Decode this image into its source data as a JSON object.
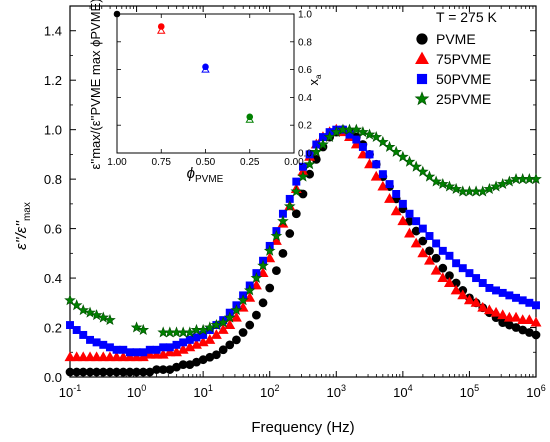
{
  "chart_data": [
    {
      "type": "scatter",
      "title": "",
      "annotation": "T = 275 K",
      "xlabel": "Frequency (Hz)",
      "ylabel_main": "ε''/ε''",
      "ylabel_sub": "max",
      "xscale": "log",
      "xlim": [
        0.1,
        1000000
      ],
      "ylim": [
        0.0,
        1.5
      ],
      "x_tick_labels": [
        {
          "base": "10",
          "exp": "-1"
        },
        {
          "base": "10",
          "exp": "0"
        },
        {
          "base": "10",
          "exp": "1"
        },
        {
          "base": "10",
          "exp": "2"
        },
        {
          "base": "10",
          "exp": "3"
        },
        {
          "base": "10",
          "exp": "4"
        },
        {
          "base": "10",
          "exp": "5"
        },
        {
          "base": "10",
          "exp": "6"
        }
      ],
      "y_tick_labels": [
        "0.0",
        "0.2",
        "0.4",
        "0.6",
        "0.8",
        "1.0",
        "1.2",
        "1.4"
      ],
      "legend_position": "top-right",
      "series": [
        {
          "name": "PVME",
          "marker": "circle",
          "color": "#000000",
          "x": [
            0.1,
            0.126,
            0.158,
            0.2,
            0.251,
            0.316,
            0.398,
            0.501,
            0.631,
            0.794,
            1,
            1.26,
            1.58,
            2,
            2.51,
            3.16,
            3.98,
            5.01,
            6.31,
            7.94,
            10,
            12.6,
            15.8,
            20,
            25.1,
            31.6,
            39.8,
            50.1,
            63.1,
            79.4,
            100,
            126,
            158,
            200,
            251,
            316,
            398,
            501,
            631,
            794,
            1000,
            1260,
            1580,
            2000,
            2510,
            3160,
            3980,
            5010,
            6310,
            7940,
            10000,
            12590,
            15850,
            19950,
            25120,
            31620,
            39810,
            50120,
            63100,
            79430,
            100000,
            125900,
            158500,
            199500,
            251200,
            316200,
            398100,
            501200,
            631000,
            794300,
            1000000
          ],
          "y": [
            0.02,
            0.02,
            0.02,
            0.02,
            0.02,
            0.02,
            0.02,
            0.02,
            0.02,
            0.02,
            0.02,
            0.02,
            0.02,
            0.03,
            0.03,
            0.03,
            0.04,
            0.05,
            0.05,
            0.06,
            0.07,
            0.08,
            0.09,
            0.11,
            0.13,
            0.15,
            0.18,
            0.21,
            0.25,
            0.3,
            0.36,
            0.43,
            0.5,
            0.58,
            0.66,
            0.74,
            0.82,
            0.88,
            0.93,
            0.97,
            0.99,
            1.0,
            0.99,
            0.97,
            0.94,
            0.9,
            0.86,
            0.81,
            0.77,
            0.72,
            0.68,
            0.63,
            0.59,
            0.55,
            0.51,
            0.48,
            0.44,
            0.41,
            0.38,
            0.35,
            0.32,
            0.3,
            0.28,
            0.26,
            0.24,
            0.22,
            0.21,
            0.2,
            0.19,
            0.18,
            0.17
          ]
        },
        {
          "name": "75PVME",
          "marker": "triangle",
          "color": "#ff0000",
          "x": [
            0.1,
            0.126,
            0.158,
            0.2,
            0.251,
            0.316,
            0.398,
            0.501,
            0.631,
            0.794,
            1,
            1.26,
            1.58,
            2,
            2.51,
            3.16,
            3.98,
            5.01,
            6.31,
            7.94,
            10,
            12.6,
            15.8,
            20,
            25.1,
            31.6,
            39.8,
            50.1,
            63.1,
            79.4,
            100,
            126,
            158,
            200,
            251,
            316,
            398,
            501,
            631,
            794,
            1000,
            1260,
            1580,
            2000,
            2510,
            3160,
            3980,
            5010,
            6310,
            7940,
            10000,
            12590,
            15850,
            19950,
            25120,
            31620,
            39810,
            50120,
            63100,
            79430,
            100000,
            125900,
            158500,
            199500,
            251200,
            316200,
            398100,
            501200,
            631000,
            794300,
            1000000
          ],
          "y": [
            0.08,
            0.08,
            0.08,
            0.08,
            0.08,
            0.08,
            0.08,
            0.08,
            0.08,
            0.08,
            0.08,
            0.08,
            0.09,
            0.09,
            0.09,
            0.1,
            0.1,
            0.11,
            0.12,
            0.13,
            0.14,
            0.15,
            0.17,
            0.19,
            0.21,
            0.24,
            0.28,
            0.32,
            0.37,
            0.42,
            0.48,
            0.55,
            0.62,
            0.69,
            0.76,
            0.83,
            0.89,
            0.94,
            0.97,
            0.99,
            1.0,
            0.99,
            0.97,
            0.94,
            0.9,
            0.86,
            0.81,
            0.77,
            0.72,
            0.67,
            0.63,
            0.58,
            0.54,
            0.5,
            0.47,
            0.43,
            0.4,
            0.38,
            0.35,
            0.33,
            0.31,
            0.3,
            0.28,
            0.27,
            0.26,
            0.25,
            0.24,
            0.24,
            0.23,
            0.23,
            0.22
          ]
        },
        {
          "name": "50PVME",
          "marker": "square",
          "color": "#0000ff",
          "x": [
            0.1,
            0.126,
            0.158,
            0.2,
            0.251,
            0.316,
            0.398,
            0.501,
            0.631,
            0.794,
            1,
            1.26,
            1.58,
            2,
            2.51,
            3.16,
            3.98,
            5.01,
            6.31,
            7.94,
            10,
            12.6,
            15.8,
            20,
            25.1,
            31.6,
            39.8,
            50.1,
            63.1,
            79.4,
            100,
            126,
            158,
            200,
            251,
            316,
            398,
            501,
            631,
            794,
            1000,
            1260,
            1580,
            2000,
            2510,
            3160,
            3980,
            5010,
            6310,
            7940,
            10000,
            12590,
            15850,
            19950,
            25120,
            31620,
            39810,
            50120,
            63100,
            79430,
            100000,
            125900,
            158500,
            199500,
            251200,
            316200,
            398100,
            501200,
            631000,
            794300,
            1000000
          ],
          "y": [
            0.21,
            0.19,
            0.17,
            0.15,
            0.14,
            0.13,
            0.12,
            0.11,
            0.11,
            0.1,
            0.1,
            0.1,
            0.11,
            0.11,
            0.12,
            0.12,
            0.13,
            0.14,
            0.15,
            0.16,
            0.17,
            0.19,
            0.21,
            0.23,
            0.26,
            0.29,
            0.33,
            0.37,
            0.42,
            0.47,
            0.53,
            0.59,
            0.66,
            0.72,
            0.79,
            0.85,
            0.9,
            0.94,
            0.97,
            0.99,
            1.0,
            1.0,
            0.98,
            0.96,
            0.93,
            0.9,
            0.86,
            0.82,
            0.78,
            0.74,
            0.7,
            0.66,
            0.63,
            0.6,
            0.57,
            0.54,
            0.51,
            0.49,
            0.46,
            0.44,
            0.42,
            0.4,
            0.38,
            0.36,
            0.35,
            0.34,
            0.33,
            0.32,
            0.31,
            0.3,
            0.29
          ]
        },
        {
          "name": "25PVME",
          "marker": "star",
          "color": "#008000",
          "x": [
            0.1,
            0.126,
            0.158,
            0.2,
            0.251,
            0.316,
            0.398,
            1,
            1.26,
            2.51,
            3.16,
            3.98,
            5.01,
            6.31,
            7.94,
            10,
            12.6,
            15.8,
            20,
            25.1,
            31.6,
            39.8,
            50.1,
            63.1,
            79.4,
            100,
            126,
            158,
            200,
            251,
            316,
            398,
            501,
            631,
            794,
            1000,
            1260,
            1580,
            2000,
            2510,
            3160,
            3980,
            5010,
            6310,
            7940,
            10000,
            12590,
            15850,
            19950,
            25120,
            31620,
            39810,
            50120,
            63100,
            79430,
            100000,
            125900,
            158500,
            199500,
            251200,
            316200,
            398100,
            501200,
            631000,
            794300,
            1000000
          ],
          "y": [
            0.31,
            0.29,
            0.27,
            0.26,
            0.25,
            0.24,
            0.23,
            0.2,
            0.19,
            0.18,
            0.18,
            0.18,
            0.18,
            0.18,
            0.19,
            0.19,
            0.2,
            0.21,
            0.22,
            0.24,
            0.27,
            0.31,
            0.35,
            0.4,
            0.45,
            0.51,
            0.57,
            0.63,
            0.69,
            0.75,
            0.81,
            0.86,
            0.91,
            0.94,
            0.97,
            0.99,
            1.0,
            1.0,
            1.0,
            0.99,
            0.98,
            0.97,
            0.95,
            0.93,
            0.91,
            0.89,
            0.87,
            0.85,
            0.83,
            0.81,
            0.79,
            0.78,
            0.77,
            0.76,
            0.75,
            0.75,
            0.75,
            0.75,
            0.76,
            0.77,
            0.78,
            0.79,
            0.8,
            0.8,
            0.8,
            0.8
          ]
        }
      ]
    },
    {
      "type": "scatter",
      "title": "",
      "xlabel": "ϕ",
      "xlabel_sub": "PVME",
      "ylabel": "ε''max/(ε''PVME max ϕPVME)",
      "ylabel_right": "x",
      "ylabel_right_sub": "a",
      "xlim": [
        1.0,
        0.0
      ],
      "ylim": [
        0.0,
        1.0
      ],
      "x_tick_labels": [
        "1.00",
        "0.75",
        "0.50",
        "0.25",
        "0.00"
      ],
      "y_tick_labels": [
        "0.0",
        "0.2",
        "0.4",
        "0.6",
        "0.8",
        "1.0"
      ],
      "series": [
        {
          "name": "",
          "marker": "filled",
          "x": [
            1.0,
            0.75,
            0.5,
            0.25
          ],
          "y": [
            1.0,
            0.91,
            0.62,
            0.26
          ],
          "colors": [
            "#000000",
            "#ff0000",
            "#0000ff",
            "#008000"
          ]
        },
        {
          "name": "",
          "marker": "open-triangle",
          "x": [
            0.75,
            0.5,
            0.25
          ],
          "y": [
            0.88,
            0.6,
            0.24
          ],
          "colors": [
            "#ff0000",
            "#0000ff",
            "#008000"
          ]
        }
      ]
    }
  ]
}
